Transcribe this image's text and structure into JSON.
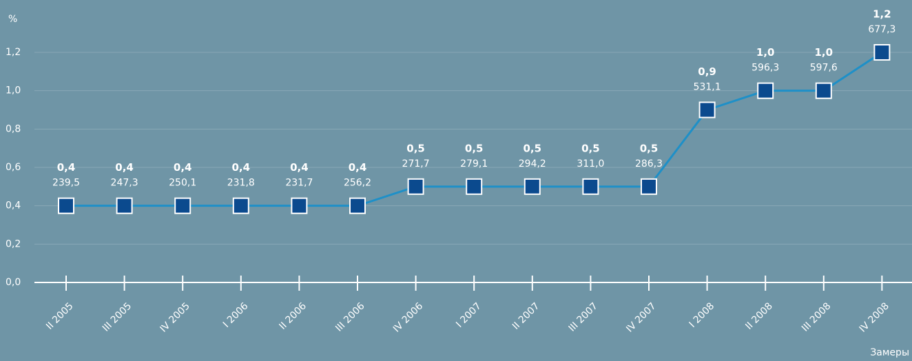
{
  "chart_data": {
    "type": "line",
    "y_axis_label": "%",
    "x_axis_label": "Замеры",
    "categories": [
      "II 2005",
      "III 2005",
      "IV 2005",
      "I 2006",
      "II 2006",
      "III 2006",
      "IV 2006",
      "I 2007",
      "II 2007",
      "III 2007",
      "IV 2007",
      "I 2008",
      "II 2008",
      "III 2008",
      "IV 2008"
    ],
    "series": [
      {
        "color": "#1e90c8",
        "marker_color": "#0b4a8e",
        "values": [
          0.4,
          0.4,
          0.4,
          0.4,
          0.4,
          0.4,
          0.5,
          0.5,
          0.5,
          0.5,
          0.5,
          0.9,
          1.0,
          1.0,
          1.2
        ],
        "value_labels": [
          "0,4",
          "0,4",
          "0,4",
          "0,4",
          "0,4",
          "0,4",
          "0,5",
          "0,5",
          "0,5",
          "0,5",
          "0,5",
          "0,9",
          "1,0",
          "1,0",
          "1,2"
        ],
        "secondary_labels": [
          "239,5",
          "247,3",
          "250,1",
          "231,8",
          "231,7",
          "256,2",
          "271,7",
          "279,1",
          "294,2",
          "311,0",
          "286,3",
          "531,1",
          "596,3",
          "597,6",
          "677,3"
        ]
      }
    ],
    "ylim": [
      0,
      1.2
    ],
    "yticks": [
      {
        "value": 0,
        "label": "0,0"
      },
      {
        "value": 0.2,
        "label": "0,2"
      },
      {
        "value": 0.4,
        "label": "0,4"
      },
      {
        "value": 0.6,
        "label": "0,6"
      },
      {
        "value": 0.8,
        "label": "0,8"
      },
      {
        "value": 1.0,
        "label": "1,0"
      },
      {
        "value": 1.2,
        "label": "1,2"
      }
    ],
    "grid": true
  }
}
